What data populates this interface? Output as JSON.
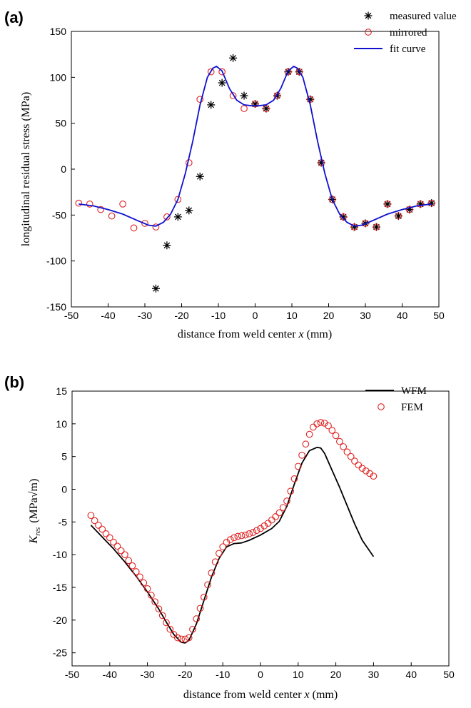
{
  "colors": {
    "measured": "#000000",
    "mirrored": "#e02020",
    "fit": "#1010d0",
    "wfm": "#000000",
    "fem": "#e02020"
  },
  "panels": [
    {
      "label": "(a)"
    },
    {
      "label": "(b)"
    }
  ],
  "chart_data": [
    {
      "type": "line",
      "panel_label": "(a)",
      "xlabel_prefix": "distance from weld center ",
      "xlabel_var": "x",
      "xlabel_suffix": " (mm)",
      "ylabel": "longitudinal residual stress (MPa)",
      "xlim": [
        -50,
        50
      ],
      "ylim": [
        -150,
        150
      ],
      "xticks": [
        -50,
        -40,
        -30,
        -20,
        -10,
        0,
        10,
        20,
        30,
        40,
        50
      ],
      "yticks": [
        -150,
        -100,
        -50,
        0,
        50,
        100,
        150
      ],
      "legend": {
        "position": "top-right",
        "entries": [
          "measured value",
          "mirrored",
          "fit curve"
        ]
      },
      "series": [
        {
          "name": "measured value",
          "marker": "asterisk",
          "x": [
            -27,
            -24,
            -21,
            -18,
            -15,
            -12,
            -9,
            -6,
            -3,
            0,
            3,
            6,
            9,
            12,
            15,
            18,
            21,
            24,
            27,
            30,
            33,
            36,
            39,
            42,
            45,
            48
          ],
          "y": [
            -130,
            -83,
            -52,
            -45,
            -8,
            70,
            94,
            121,
            80,
            71,
            66,
            80,
            106,
            106,
            76,
            7,
            -33,
            -52,
            -63,
            -59,
            -63,
            -38,
            -51,
            -44,
            -38,
            -37
          ]
        },
        {
          "name": "mirrored",
          "marker": "circle",
          "x": [
            -48,
            -45,
            -42,
            -39,
            -36,
            -33,
            -30,
            -27,
            -24,
            -21,
            -18,
            -15,
            -12,
            -9,
            -6,
            -3,
            0,
            3,
            6,
            9,
            12,
            15,
            18,
            21,
            24,
            27,
            30,
            33,
            36,
            39,
            42,
            45,
            48
          ],
          "y": [
            -37,
            -38,
            -44,
            -51,
            -38,
            -64,
            -59,
            -63,
            -52,
            -33,
            7,
            76,
            106,
            106,
            80,
            66,
            71,
            66,
            80,
            106,
            106,
            76,
            7,
            -33,
            -52,
            -63,
            -59,
            -63,
            -38,
            -51,
            -44,
            -38,
            -37
          ]
        },
        {
          "name": "fit curve",
          "marker": "line",
          "x": [
            -48,
            -44,
            -40,
            -36,
            -32,
            -29,
            -27,
            -25,
            -23,
            -21,
            -19,
            -17,
            -15,
            -13,
            -11.5,
            -10.5,
            -9,
            -7,
            -5,
            -3,
            -1,
            0,
            1,
            3,
            5,
            7,
            9,
            10.5,
            11.5,
            13,
            15,
            17,
            19,
            21,
            23,
            25,
            27,
            29,
            32,
            36,
            40,
            44,
            48
          ],
          "y": [
            -38,
            -40,
            -44,
            -49,
            -56,
            -61,
            -62,
            -58,
            -49,
            -33,
            -5,
            30,
            70,
            100,
            110,
            112,
            107,
            88,
            75,
            70,
            69,
            69,
            69,
            70,
            75,
            88,
            107,
            112,
            110,
            100,
            70,
            30,
            -5,
            -33,
            -49,
            -58,
            -62,
            -61,
            -56,
            -49,
            -44,
            -40,
            -38
          ]
        }
      ]
    },
    {
      "type": "line",
      "panel_label": "(b)",
      "xlabel_prefix": "distance from weld center ",
      "xlabel_var": "x",
      "xlabel_suffix": " (mm)",
      "ylabel_symbol": "K",
      "ylabel_sub": "res",
      "ylabel_unit": "(MPa√m)",
      "xlim": [
        -50,
        50
      ],
      "ylim": [
        -27,
        15
      ],
      "xticks": [
        -50,
        -40,
        -30,
        -20,
        -10,
        0,
        10,
        20,
        30,
        40,
        50
      ],
      "yticks": [
        -25,
        -20,
        -15,
        -10,
        -5,
        0,
        5,
        10,
        15
      ],
      "legend": {
        "position": "top-right",
        "entries": [
          "WFM",
          "FEM"
        ]
      },
      "series": [
        {
          "name": "WFM",
          "marker": "line",
          "x": [
            -45,
            -42,
            -39,
            -36,
            -33,
            -30,
            -27,
            -25,
            -23,
            -21,
            -20,
            -19,
            -17,
            -15,
            -13,
            -11,
            -9,
            -7,
            -5,
            -3,
            0,
            3,
            5,
            7,
            9,
            11,
            13,
            15,
            16,
            17,
            19,
            21,
            23,
            25,
            27,
            30
          ],
          "y": [
            -5.5,
            -7.3,
            -9.1,
            -11.1,
            -13.3,
            -15.7,
            -18.3,
            -20.3,
            -22.2,
            -23.4,
            -23.5,
            -23.1,
            -20.6,
            -17.0,
            -13.4,
            -10.6,
            -8.8,
            -8.3,
            -8.2,
            -7.8,
            -7.0,
            -6.0,
            -4.9,
            -2.6,
            0.8,
            4.0,
            5.9,
            6.4,
            6.3,
            5.5,
            2.9,
            0.3,
            -2.5,
            -5.3,
            -7.8,
            -10.3
          ]
        },
        {
          "name": "FEM",
          "marker": "circle",
          "x": [
            -45,
            -44,
            -43,
            -42,
            -41,
            -40,
            -39,
            -38,
            -37,
            -36,
            -35,
            -34,
            -33,
            -32,
            -31,
            -30,
            -29,
            -28,
            -27,
            -26,
            -25,
            -24,
            -23,
            -22,
            -21,
            -20,
            -19,
            -18,
            -17,
            -16,
            -15,
            -14,
            -13,
            -12,
            -11,
            -10,
            -9,
            -8,
            -7,
            -6,
            -5,
            -4,
            -3,
            -2,
            -1,
            0,
            1,
            2,
            3,
            4,
            5,
            6,
            7,
            8,
            9,
            10,
            11,
            12,
            13,
            14,
            15,
            16,
            17,
            18,
            19,
            20,
            21,
            22,
            23,
            24,
            25,
            26,
            27,
            28,
            29,
            30
          ],
          "y": [
            -4.0,
            -4.8,
            -5.5,
            -6.1,
            -6.8,
            -7.4,
            -8.1,
            -8.7,
            -9.4,
            -10.0,
            -10.9,
            -11.7,
            -12.6,
            -13.4,
            -14.3,
            -15.2,
            -16.2,
            -17.2,
            -18.3,
            -19.3,
            -20.4,
            -21.4,
            -22.2,
            -22.7,
            -22.9,
            -22.9,
            -22.7,
            -21.4,
            -19.8,
            -18.2,
            -16.5,
            -14.6,
            -12.8,
            -11.1,
            -9.8,
            -8.8,
            -8.1,
            -7.7,
            -7.4,
            -7.2,
            -7.1,
            -7.0,
            -6.8,
            -6.6,
            -6.3,
            -6.0,
            -5.6,
            -5.2,
            -4.7,
            -4.2,
            -3.6,
            -2.8,
            -1.8,
            -0.3,
            1.6,
            3.5,
            5.2,
            6.9,
            8.4,
            9.5,
            10.0,
            10.2,
            10.1,
            9.7,
            9.0,
            8.2,
            7.3,
            6.5,
            5.7,
            5.0,
            4.3,
            3.7,
            3.2,
            2.8,
            2.4,
            2.0
          ]
        }
      ]
    }
  ]
}
